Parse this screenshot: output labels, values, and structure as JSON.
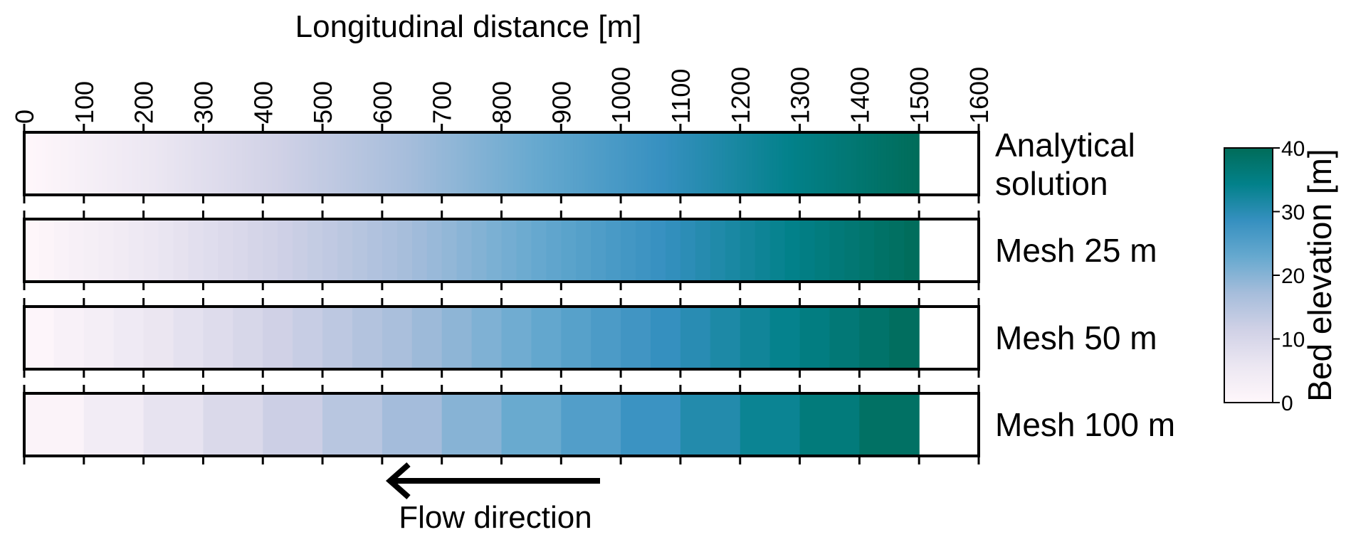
{
  "chart_data": {
    "type": "heatmap",
    "xlabel": "Longitudinal distance [m]",
    "x_ticks": [
      0,
      100,
      200,
      300,
      400,
      500,
      600,
      700,
      800,
      900,
      1000,
      1100,
      1200,
      1300,
      1400,
      1500,
      1600
    ],
    "xlim": [
      0,
      1600
    ],
    "bed_extent": [
      0,
      1500
    ],
    "rows": [
      {
        "label": [
          "Analytical",
          "solution"
        ],
        "cell_size_m": 5,
        "value_at_0": 0,
        "value_at_1500": 40
      },
      {
        "label": [
          "Mesh 25 m"
        ],
        "cell_size_m": 25,
        "value_at_0": 0,
        "value_at_1500": 40
      },
      {
        "label": [
          "Mesh 50 m"
        ],
        "cell_size_m": 50,
        "value_at_0": 0,
        "value_at_1500": 40
      },
      {
        "label": [
          "Mesh 100 m"
        ],
        "cell_size_m": 100,
        "value_at_0": 0,
        "value_at_1500": 40
      }
    ],
    "colorbar": {
      "label": "Bed elevation [m]",
      "range": [
        0,
        40
      ],
      "ticks": [
        0,
        10,
        20,
        30,
        40
      ],
      "colormap": [
        "#fff7fb",
        "#ece7f2",
        "#d0d1e6",
        "#a6bddb",
        "#67a9cf",
        "#3690c0",
        "#02818a",
        "#016c59"
      ]
    },
    "annotation": {
      "text": "Flow direction",
      "arrow": "left"
    }
  }
}
